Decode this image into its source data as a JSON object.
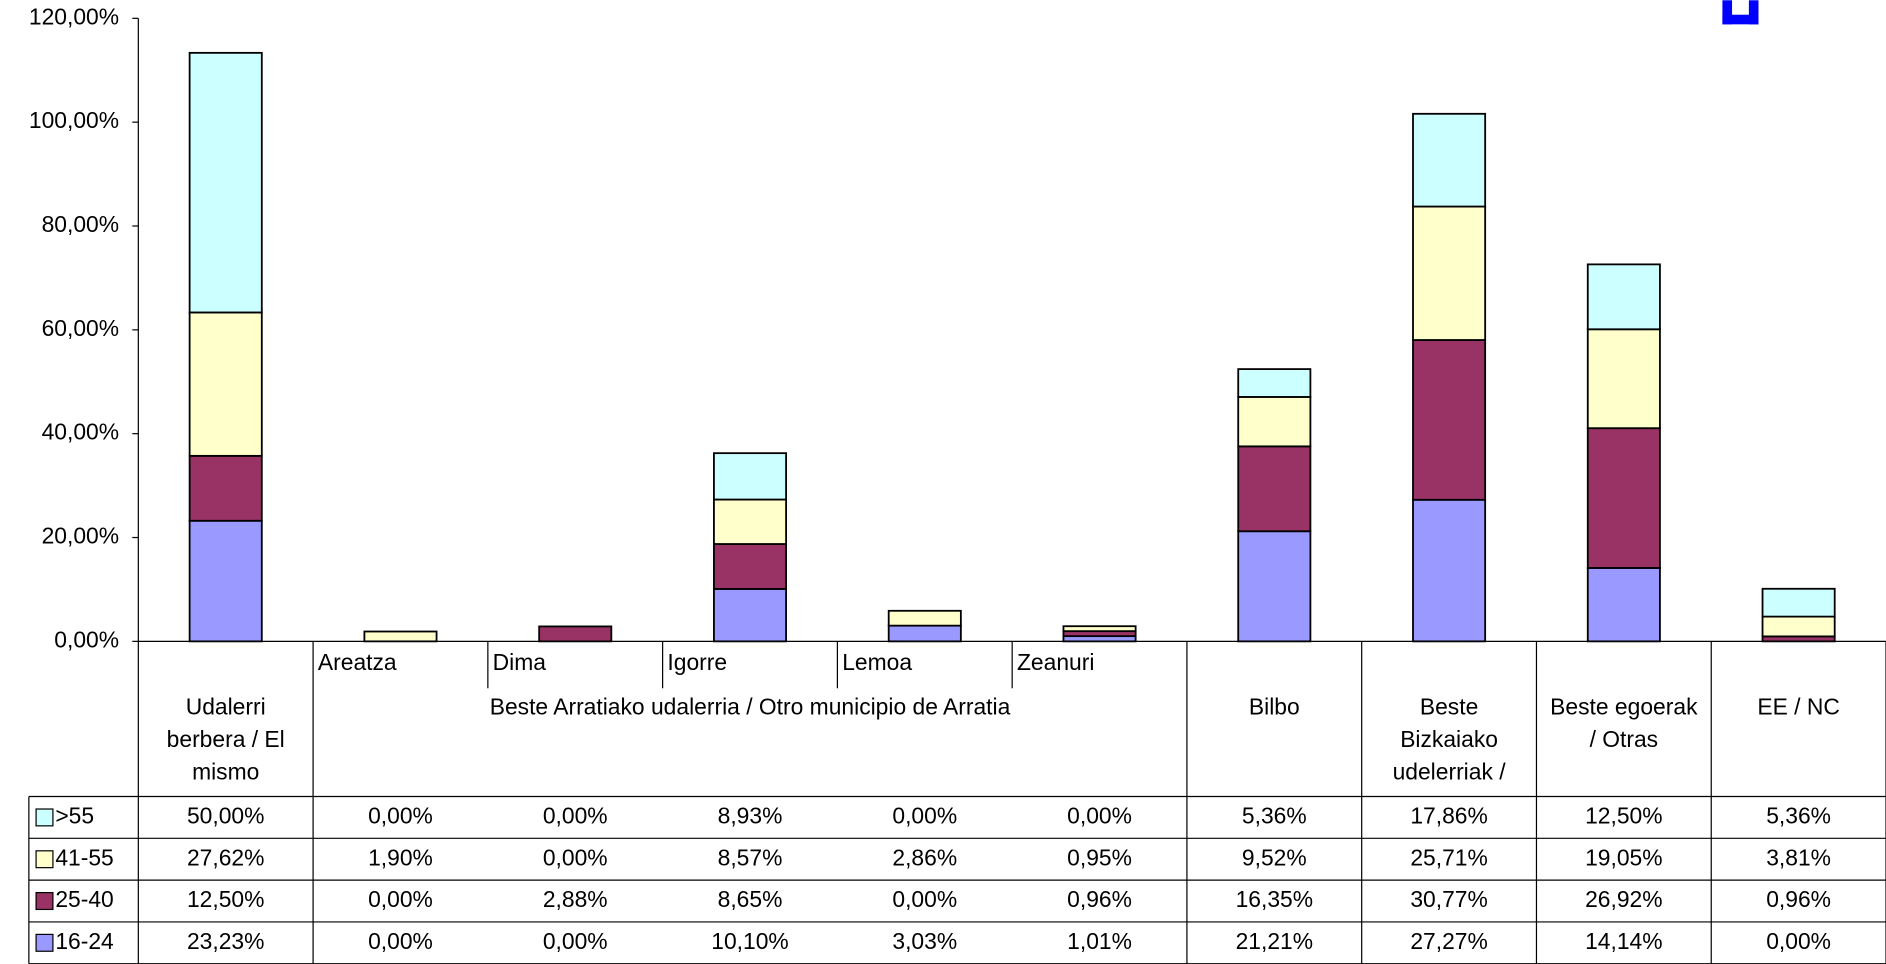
{
  "chart_data": {
    "type": "stacked_bar",
    "categories": [
      "Udalerri berbera / El mismo",
      "Areatza",
      "Dima",
      "Igorre",
      "Lemoa",
      "Zeanuri",
      "Bilbo",
      "Beste Bizkaiako udelerriak /",
      "Beste egoerak / Otras",
      "EE / NC"
    ],
    "category_group": {
      "label": "Beste Arratiako udalerria /  Otro municipio de Arratia",
      "first": 1,
      "last": 5
    },
    "series": [
      {
        "name": "16-24",
        "color": "#9999ff",
        "values": [
          23.23,
          0,
          0,
          10.1,
          3.03,
          1.01,
          21.21,
          27.27,
          14.14,
          0
        ],
        "value_labels": [
          "23,23%",
          "0,00%",
          "0,00%",
          "10,10%",
          "3,03%",
          "1,01%",
          "21,21%",
          "27,27%",
          "14,14%",
          "0,00%"
        ]
      },
      {
        "name": "25-40",
        "color": "#993366",
        "values": [
          12.5,
          0,
          2.88,
          8.65,
          0,
          0.96,
          16.35,
          30.77,
          26.92,
          0.96
        ],
        "value_labels": [
          "12,50%",
          "0,00%",
          "2,88%",
          "8,65%",
          "0,00%",
          "0,96%",
          "16,35%",
          "30,77%",
          "26,92%",
          "0,96%"
        ]
      },
      {
        "name": "41-55",
        "color": "#ffffcc",
        "values": [
          27.62,
          1.9,
          0,
          8.57,
          2.86,
          0.95,
          9.52,
          25.71,
          19.05,
          3.81
        ],
        "value_labels": [
          "27,62%",
          "1,90%",
          "0,00%",
          "8,57%",
          "2,86%",
          "0,95%",
          "9,52%",
          "25,71%",
          "19,05%",
          "3,81%"
        ]
      },
      {
        "name": ">55",
        "color": "#ccffff",
        "values": [
          50.0,
          0,
          0,
          8.93,
          0,
          0,
          5.36,
          17.86,
          12.5,
          5.36
        ],
        "value_labels": [
          "50,00%",
          "0,00%",
          "0,00%",
          "8,93%",
          "0,00%",
          "0,00%",
          "5,36%",
          "17,86%",
          "12,50%",
          "5,36%"
        ]
      }
    ],
    "ylim": [
      0,
      120
    ],
    "yticks": [
      {
        "value": 0,
        "label": "0,00%"
      },
      {
        "value": 20,
        "label": "20,00%"
      },
      {
        "value": 40,
        "label": "40,00%"
      },
      {
        "value": 60,
        "label": "60,00%"
      },
      {
        "value": 80,
        "label": "80,00%"
      },
      {
        "value": 100,
        "label": "100,00%"
      },
      {
        "value": 120,
        "label": "120,00%"
      }
    ],
    "data_table": true
  }
}
